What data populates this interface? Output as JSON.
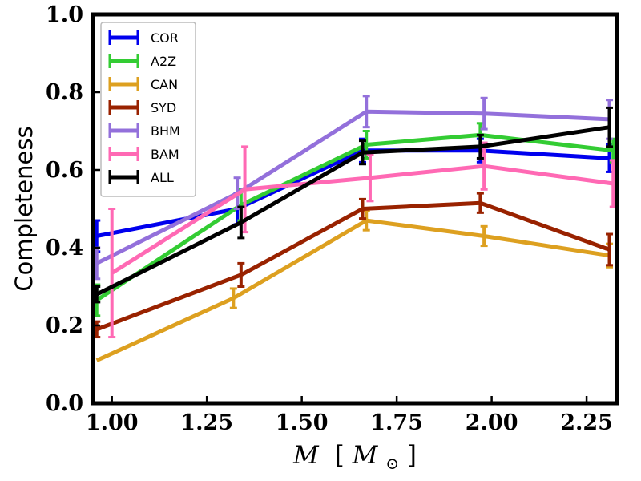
{
  "chart_data": {
    "type": "line",
    "title": "",
    "xlabel": "M [M⊙]",
    "xlabel_main": "M",
    "xlabel_unit_open": "[",
    "xlabel_unit_var": "M",
    "xlabel_unit_sub": "⊙",
    "xlabel_unit_close": "]",
    "ylabel": "Completeness",
    "xlim": [
      0.95,
      2.33
    ],
    "ylim": [
      0.0,
      1.0
    ],
    "xticks": [
      1.0,
      1.25,
      1.5,
      1.75,
      2.0,
      2.25
    ],
    "xtick_labels": [
      "1.00",
      "1.25",
      "1.50",
      "1.75",
      "2.00",
      "2.25"
    ],
    "yticks": [
      0.0,
      0.2,
      0.4,
      0.6,
      0.8,
      1.0
    ],
    "ytick_labels": [
      "0.0",
      "0.2",
      "0.4",
      "0.6",
      "0.8",
      "1.0"
    ],
    "grid": false,
    "legend_position": "top-left",
    "series": [
      {
        "name": "COR",
        "color": "#0000ee",
        "x": [
          0.96,
          1.33,
          1.66,
          1.97,
          2.31
        ],
        "y": [
          0.43,
          0.5,
          0.65,
          0.65,
          0.63
        ],
        "err": [
          0.04,
          0.04,
          0.03,
          0.03,
          0.035
        ]
      },
      {
        "name": "A2Z",
        "color": "#33cc33",
        "x": [
          0.96,
          1.34,
          1.67,
          1.97,
          2.32
        ],
        "y": [
          0.265,
          0.51,
          0.665,
          0.69,
          0.65
        ],
        "err": [
          0.04,
          0.04,
          0.035,
          0.03,
          0.03
        ]
      },
      {
        "name": "CAN",
        "color": "#dda020",
        "x": [
          0.96,
          1.32,
          1.67,
          1.98,
          2.31
        ],
        "y": [
          0.11,
          0.27,
          0.47,
          0.43,
          0.38
        ],
        "err": [
          0.0,
          0.025,
          0.025,
          0.025,
          0.03
        ]
      },
      {
        "name": "SYD",
        "color": "#992200",
        "x": [
          0.96,
          1.34,
          1.66,
          1.97,
          2.31
        ],
        "y": [
          0.19,
          0.33,
          0.5,
          0.515,
          0.395
        ],
        "err": [
          0.02,
          0.03,
          0.025,
          0.025,
          0.04
        ]
      },
      {
        "name": "BHM",
        "color": "#9370db",
        "x": [
          0.96,
          1.33,
          1.67,
          1.98,
          2.31
        ],
        "y": [
          0.36,
          0.54,
          0.75,
          0.745,
          0.73
        ],
        "err": [
          0.04,
          0.04,
          0.04,
          0.04,
          0.05
        ]
      },
      {
        "name": "BAM",
        "color": "#ff69b4",
        "x": [
          1.0,
          1.35,
          1.68,
          1.98,
          2.32
        ],
        "y": [
          0.335,
          0.55,
          0.58,
          0.61,
          0.565
        ],
        "err": [
          0.165,
          0.11,
          0.06,
          0.06,
          0.06
        ]
      },
      {
        "name": "ALL",
        "color": "#000000",
        "x": [
          0.96,
          1.34,
          1.66,
          1.97,
          2.31
        ],
        "y": [
          0.28,
          0.465,
          0.645,
          0.66,
          0.71
        ],
        "err": [
          0.02,
          0.04,
          0.03,
          0.03,
          0.05
        ]
      }
    ]
  }
}
